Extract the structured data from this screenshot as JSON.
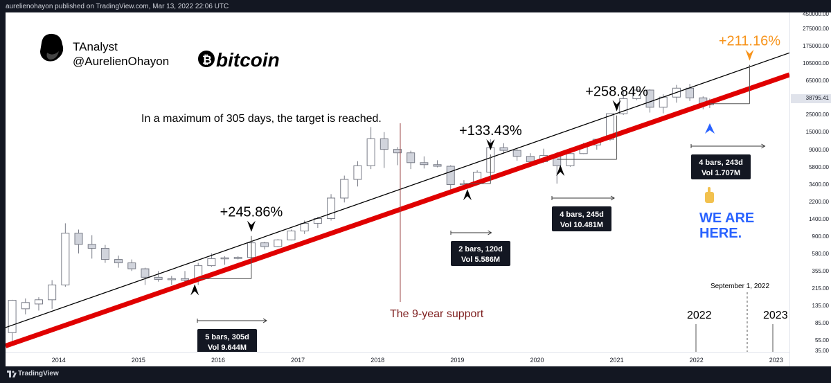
{
  "header": {
    "text": "aurelienohayon published on TradingView.com, Mar 13, 2022 22:06 UTC"
  },
  "footer": {
    "brand": "TradingView"
  },
  "brand": {
    "name": "TAnalyst",
    "handle": "@AurelienOhayon",
    "coin_word": "bitcoin",
    "coin_symbol": "₿"
  },
  "annotations": {
    "target_text": "In a maximum of 305 days, the target is reached.",
    "support_text": "The 9-year support",
    "we_are_here": [
      "WE ARE",
      "HERE."
    ],
    "finger_icon": "pointing-up-hand",
    "sept_label": "September 1, 2022",
    "year_2022": "2022",
    "year_2023": "2023",
    "current_price_label": "38795.41"
  },
  "moves": [
    {
      "pct": "+245.86%",
      "bars": "5 bars, 305d",
      "vol": "Vol 9.644M"
    },
    {
      "pct": "+133.43%",
      "bars": "2 bars, 120d",
      "vol": "Vol 5.586M"
    },
    {
      "pct": "+258.84%",
      "bars": "4 bars, 245d",
      "vol": "Vol 10.481M"
    },
    {
      "pct": "+211.16%",
      "bars": "4 bars, 243d",
      "vol": "Vol 1.707M"
    }
  ],
  "colors": {
    "background": "#131722",
    "plot_background": "#ffffff",
    "support_line": "#e00000",
    "upper_line": "#000000",
    "support_text": "#7d1d1d",
    "highlight_orange": "#f7931a",
    "we_are_here_blue": "#2962ff",
    "candle_fill": "#d1d4dc",
    "box_background": "#131722"
  },
  "chart_data": {
    "type": "line",
    "title": "",
    "xlabel": "",
    "ylabel": "",
    "y_scale": "log",
    "x_ticks": [
      "2014",
      "2015",
      "2016",
      "2017",
      "2018",
      "2019",
      "2020",
      "2021",
      "2022",
      "2023"
    ],
    "y_ticks": [
      "450000.00",
      "275000.00",
      "175000.00",
      "105000.00",
      "65000.00",
      "38795.41",
      "25000.00",
      "15000.00",
      "9000.00",
      "5800.00",
      "3400.00",
      "2200.00",
      "1400.00",
      "900.00",
      "580.00",
      "355.00",
      "215.00",
      "135.00",
      "85.00",
      "55.00",
      "35.00"
    ],
    "ylim": [
      35,
      450000
    ],
    "xlim": [
      "2013-05",
      "2023-03"
    ],
    "candles": [
      {
        "t": "2013-06",
        "o": 50,
        "h": 130,
        "l": 35,
        "c": 128
      },
      {
        "t": "2013-08",
        "o": 100,
        "h": 135,
        "l": 85,
        "c": 120
      },
      {
        "t": "2013-10",
        "o": 115,
        "h": 140,
        "l": 95,
        "c": 130
      },
      {
        "t": "2013-12",
        "o": 130,
        "h": 230,
        "l": 100,
        "c": 200
      },
      {
        "t": "2014-02",
        "o": 200,
        "h": 1200,
        "l": 190,
        "c": 900
      },
      {
        "t": "2014-04",
        "o": 900,
        "h": 1000,
        "l": 500,
        "c": 650
      },
      {
        "t": "2014-06",
        "o": 650,
        "h": 850,
        "l": 430,
        "c": 580
      },
      {
        "t": "2014-08",
        "o": 580,
        "h": 640,
        "l": 380,
        "c": 420
      },
      {
        "t": "2014-10",
        "o": 420,
        "h": 470,
        "l": 330,
        "c": 380
      },
      {
        "t": "2014-12",
        "o": 380,
        "h": 420,
        "l": 300,
        "c": 320
      },
      {
        "t": "2015-02",
        "o": 320,
        "h": 330,
        "l": 200,
        "c": 250
      },
      {
        "t": "2015-04",
        "o": 250,
        "h": 300,
        "l": 220,
        "c": 235
      },
      {
        "t": "2015-06",
        "o": 235,
        "h": 260,
        "l": 200,
        "c": 240
      },
      {
        "t": "2015-08",
        "o": 240,
        "h": 300,
        "l": 200,
        "c": 230
      },
      {
        "t": "2015-10",
        "o": 230,
        "h": 380,
        "l": 200,
        "c": 350
      },
      {
        "t": "2015-12",
        "o": 350,
        "h": 500,
        "l": 340,
        "c": 430
      },
      {
        "t": "2016-02",
        "o": 430,
        "h": 460,
        "l": 360,
        "c": 440
      },
      {
        "t": "2016-04",
        "o": 440,
        "h": 460,
        "l": 420,
        "c": 445
      },
      {
        "t": "2016-06",
        "o": 445,
        "h": 780,
        "l": 420,
        "c": 680
      },
      {
        "t": "2016-08",
        "o": 680,
        "h": 700,
        "l": 560,
        "c": 610
      },
      {
        "t": "2016-10",
        "o": 610,
        "h": 760,
        "l": 600,
        "c": 740
      },
      {
        "t": "2016-12",
        "o": 740,
        "h": 1000,
        "l": 730,
        "c": 960
      },
      {
        "t": "2017-02",
        "o": 960,
        "h": 1300,
        "l": 880,
        "c": 1200
      },
      {
        "t": "2017-04",
        "o": 1200,
        "h": 1450,
        "l": 1050,
        "c": 1380
      },
      {
        "t": "2017-06",
        "o": 1380,
        "h": 2800,
        "l": 1300,
        "c": 2500
      },
      {
        "t": "2017-08",
        "o": 2500,
        "h": 4800,
        "l": 2200,
        "c": 4300
      },
      {
        "t": "2017-10",
        "o": 4300,
        "h": 7300,
        "l": 3500,
        "c": 6400
      },
      {
        "t": "2017-12",
        "o": 6400,
        "h": 19700,
        "l": 5800,
        "c": 14000
      },
      {
        "t": "2018-02",
        "o": 14000,
        "h": 17000,
        "l": 6000,
        "c": 10300
      },
      {
        "t": "2018-04",
        "o": 10300,
        "h": 11000,
        "l": 6500,
        "c": 9300
      },
      {
        "t": "2018-06",
        "o": 9300,
        "h": 9900,
        "l": 5800,
        "c": 7000
      },
      {
        "t": "2018-08",
        "o": 7000,
        "h": 8400,
        "l": 5900,
        "c": 6600
      },
      {
        "t": "2018-10",
        "o": 6600,
        "h": 7500,
        "l": 6100,
        "c": 6300
      },
      {
        "t": "2018-12",
        "o": 6300,
        "h": 6500,
        "l": 3100,
        "c": 3700
      },
      {
        "t": "2019-02",
        "o": 3700,
        "h": 4200,
        "l": 3300,
        "c": 3800
      },
      {
        "t": "2019-04",
        "o": 3800,
        "h": 5600,
        "l": 3700,
        "c": 5300
      },
      {
        "t": "2019-06",
        "o": 5300,
        "h": 13800,
        "l": 5200,
        "c": 10800
      },
      {
        "t": "2019-08",
        "o": 10800,
        "h": 12300,
        "l": 9100,
        "c": 10000
      },
      {
        "t": "2019-10",
        "o": 10000,
        "h": 10400,
        "l": 7400,
        "c": 8400
      },
      {
        "t": "2019-12",
        "o": 8400,
        "h": 9200,
        "l": 6500,
        "c": 7200
      },
      {
        "t": "2020-02",
        "o": 7200,
        "h": 10500,
        "l": 6900,
        "c": 8600
      },
      {
        "t": "2020-04",
        "o": 8600,
        "h": 9500,
        "l": 3800,
        "c": 6400
      },
      {
        "t": "2020-06",
        "o": 6400,
        "h": 10000,
        "l": 6200,
        "c": 9100
      },
      {
        "t": "2020-08",
        "o": 9100,
        "h": 12400,
        "l": 9000,
        "c": 11700
      },
      {
        "t": "2020-10",
        "o": 11700,
        "h": 13800,
        "l": 10200,
        "c": 13800
      },
      {
        "t": "2020-12",
        "o": 13800,
        "h": 29000,
        "l": 13200,
        "c": 29000
      },
      {
        "t": "2021-02",
        "o": 29000,
        "h": 58000,
        "l": 28000,
        "c": 45000
      },
      {
        "t": "2021-04",
        "o": 45000,
        "h": 64800,
        "l": 43000,
        "c": 57700
      },
      {
        "t": "2021-06",
        "o": 57700,
        "h": 59000,
        "l": 30000,
        "c": 35000
      },
      {
        "t": "2021-08",
        "o": 35000,
        "h": 51000,
        "l": 29300,
        "c": 47000
      },
      {
        "t": "2021-10",
        "o": 47000,
        "h": 67000,
        "l": 40000,
        "c": 61000
      },
      {
        "t": "2021-12",
        "o": 61000,
        "h": 69000,
        "l": 42000,
        "c": 46000
      },
      {
        "t": "2022-02",
        "o": 46000,
        "h": 48000,
        "l": 33000,
        "c": 38500
      },
      {
        "t": "2022-03",
        "o": 38500,
        "h": 45000,
        "l": 34300,
        "c": 38795.41
      }
    ],
    "trendlines": [
      {
        "name": "support",
        "p1": {
          "t": "2013-05",
          "v": 34
        },
        "p2": {
          "t": "2023-03",
          "v": 90000
        }
      },
      {
        "name": "upper",
        "p1": {
          "t": "2013-05",
          "v": 58
        },
        "p2": {
          "t": "2023-03",
          "v": 170000
        }
      }
    ],
    "moves": [
      {
        "label": "+245.86%",
        "start": {
          "t": "2015-10",
          "v": 240
        },
        "end": {
          "t": "2016-06",
          "v": 830
        },
        "window_end": "2016-08-10"
      },
      {
        "label": "+133.43%",
        "start": {
          "t": "2019-02",
          "v": 3800
        },
        "end": {
          "t": "2019-06",
          "v": 8870
        },
        "window_end": "2019-06-05"
      },
      {
        "label": "+258.84%",
        "start": {
          "t": "2020-04",
          "v": 7700
        },
        "end": {
          "t": "2021-01",
          "v": 27600
        },
        "window_end": "2020-12-20"
      },
      {
        "label": "+211.16%",
        "start": {
          "t": "2022-03",
          "v": 38795.41
        },
        "end": {
          "t": "2022-09",
          "v": 120000
        },
        "window_end": "2022-11-10"
      }
    ],
    "target_date": "2022-09-01"
  }
}
